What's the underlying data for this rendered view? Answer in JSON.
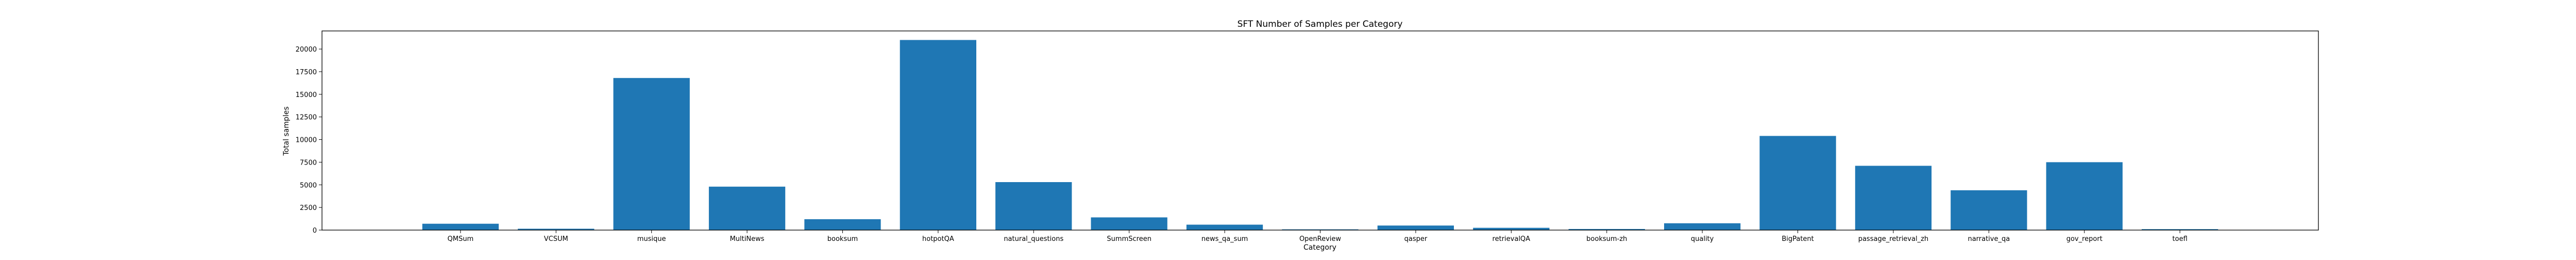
{
  "chart_data": {
    "type": "bar",
    "title": "SFT Number of Samples per Category",
    "xlabel": "Category",
    "ylabel": "Total samples",
    "categories": [
      "QMSum",
      "VCSUM",
      "musique",
      "MultiNews",
      "booksum",
      "hotpotQA",
      "natural_questions",
      "SummScreen",
      "news_qa_sum",
      "OpenReview",
      "qasper",
      "retrievalQA",
      "booksum-zh",
      "quality",
      "BigPatent",
      "passage_retrieval_zh",
      "narrative_qa",
      "gov_report",
      "toefl"
    ],
    "values": [
      700,
      150,
      16800,
      4800,
      1200,
      21000,
      5300,
      1400,
      600,
      80,
      500,
      250,
      120,
      750,
      10400,
      7100,
      4400,
      7500,
      100
    ],
    "ylim": [
      0,
      22000
    ],
    "yticks": [
      0,
      2500,
      5000,
      7500,
      10000,
      12500,
      15000,
      17500,
      20000
    ],
    "bar_color": "#1f77b4",
    "grid": false,
    "legend": "none"
  }
}
